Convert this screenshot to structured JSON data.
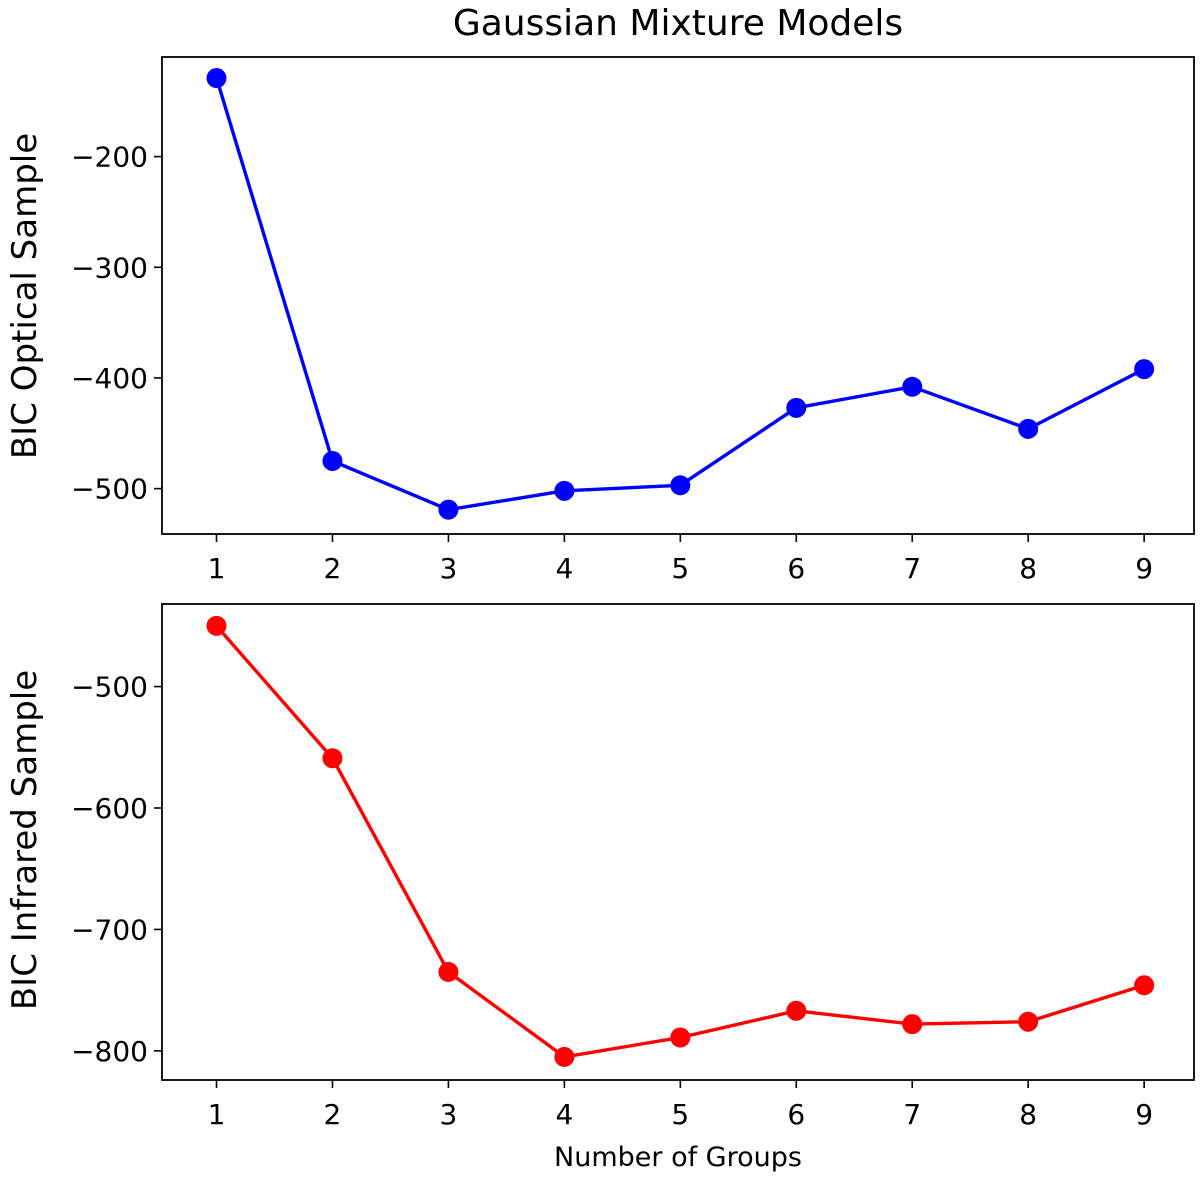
{
  "title": "Gaussian Mixture Models",
  "chart_data": [
    {
      "type": "line",
      "title": "Gaussian Mixture Models",
      "xlabel": "",
      "ylabel": "BIC Optical Sample",
      "x": [
        1,
        2,
        3,
        4,
        5,
        6,
        7,
        8,
        9
      ],
      "series": [
        {
          "color": "#0000ff",
          "marker": "circle",
          "values": [
            -129,
            -475,
            -519,
            -502,
            -497,
            -427,
            -408,
            -446,
            -392
          ]
        }
      ],
      "xticks": [
        1,
        2,
        3,
        4,
        5,
        6,
        7,
        8,
        9
      ],
      "yticks": [
        -500,
        -400,
        -300,
        -200
      ],
      "xlim": [
        0.53,
        9.43
      ],
      "ylim": [
        -541,
        -110
      ],
      "grid": false
    },
    {
      "type": "line",
      "title": "",
      "xlabel": "Number of Groups",
      "ylabel": "BIC Infrared Sample",
      "x": [
        1,
        2,
        3,
        4,
        5,
        6,
        7,
        8,
        9
      ],
      "series": [
        {
          "color": "#ff0000",
          "marker": "circle",
          "values": [
            -450,
            -559,
            -735,
            -805,
            -789,
            -767,
            -778,
            -776,
            -746
          ]
        }
      ],
      "xticks": [
        1,
        2,
        3,
        4,
        5,
        6,
        7,
        8,
        9
      ],
      "yticks": [
        -800,
        -700,
        -600,
        -500
      ],
      "xlim": [
        0.53,
        9.43
      ],
      "ylim": [
        -824,
        -432
      ],
      "grid": false
    }
  ]
}
